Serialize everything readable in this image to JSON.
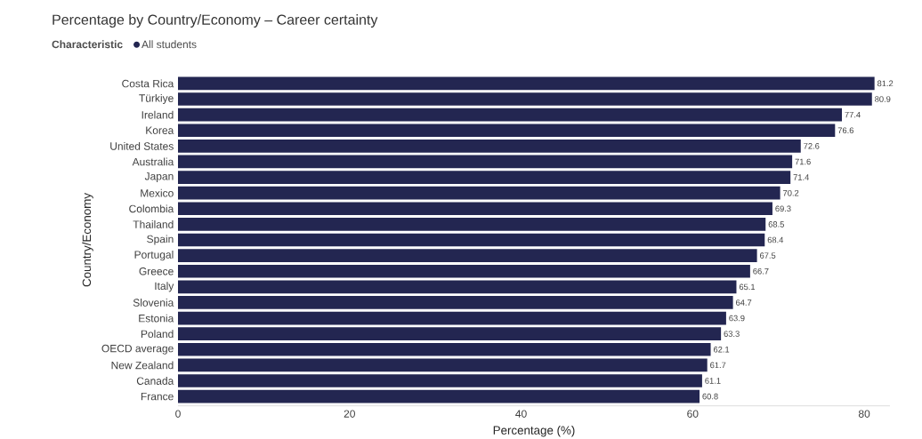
{
  "chart_data": {
    "type": "bar",
    "orientation": "horizontal",
    "title": "Percentage by Country/Economy – Career certainty",
    "xlabel": "Percentage (%)",
    "ylabel": "Country/Economy",
    "legend_title": "Characteristic",
    "legend": "top left",
    "categories": [
      "Costa Rica",
      "Türkiye",
      "Ireland",
      "Korea",
      "United States",
      "Australia",
      "Japan",
      "Mexico",
      "Colombia",
      "Thailand",
      "Spain",
      "Portugal",
      "Greece",
      "Italy",
      "Slovenia",
      "Estonia",
      "Poland",
      "OECD average",
      "New Zealand",
      "Canada",
      "France"
    ],
    "series": [
      {
        "name": "All students",
        "color": "#232651",
        "values": [
          81.2,
          80.9,
          77.4,
          76.6,
          72.6,
          71.6,
          71.4,
          70.2,
          69.3,
          68.5,
          68.4,
          67.5,
          66.7,
          65.1,
          64.7,
          63.9,
          63.3,
          62.1,
          61.7,
          61.1,
          60.8
        ]
      }
    ],
    "xlim": [
      0,
      83
    ],
    "xticks": [
      0,
      20,
      40,
      60,
      80
    ],
    "data_labels": true
  }
}
